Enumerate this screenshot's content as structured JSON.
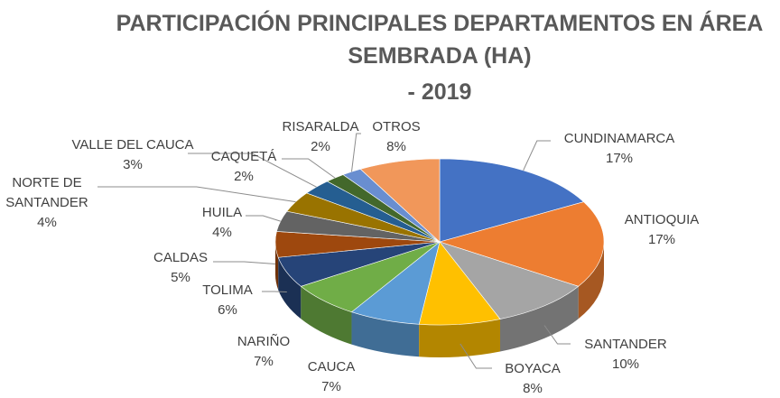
{
  "chart_data": {
    "type": "pie",
    "title": "PARTICIPACIÓN PRINCIPALES DEPARTAMENTOS EN ÁREA SEMBRADA (HA)",
    "subtitle": "- 2019",
    "categories": [
      "CUNDINAMARCA",
      "ANTIOQUIA",
      "SANTANDER",
      "BOYACA",
      "CAUCA",
      "NARIÑO",
      "TOLIMA",
      "CALDAS",
      "HUILA",
      "NORTE DE SANTANDER",
      "VALLE DEL CAUCA",
      "CAQUETÁ",
      "RISARALDA",
      "OTROS"
    ],
    "values": [
      17,
      17,
      10,
      8,
      7,
      7,
      6,
      5,
      4,
      4,
      3,
      2,
      2,
      8
    ],
    "value_labels": [
      "17%",
      "17%",
      "10%",
      "8%",
      "7%",
      "7%",
      "6%",
      "5%",
      "4%",
      "4%",
      "3%",
      "2%",
      "2%",
      "8%"
    ],
    "colors": [
      "#4472c4",
      "#ed7d31",
      "#a5a5a5",
      "#ffc000",
      "#5b9bd5",
      "#70ad47",
      "#264478",
      "#9e480e",
      "#636363",
      "#997300",
      "#255e91",
      "#43682b",
      "#698ed0",
      "#f1975a"
    ]
  }
}
